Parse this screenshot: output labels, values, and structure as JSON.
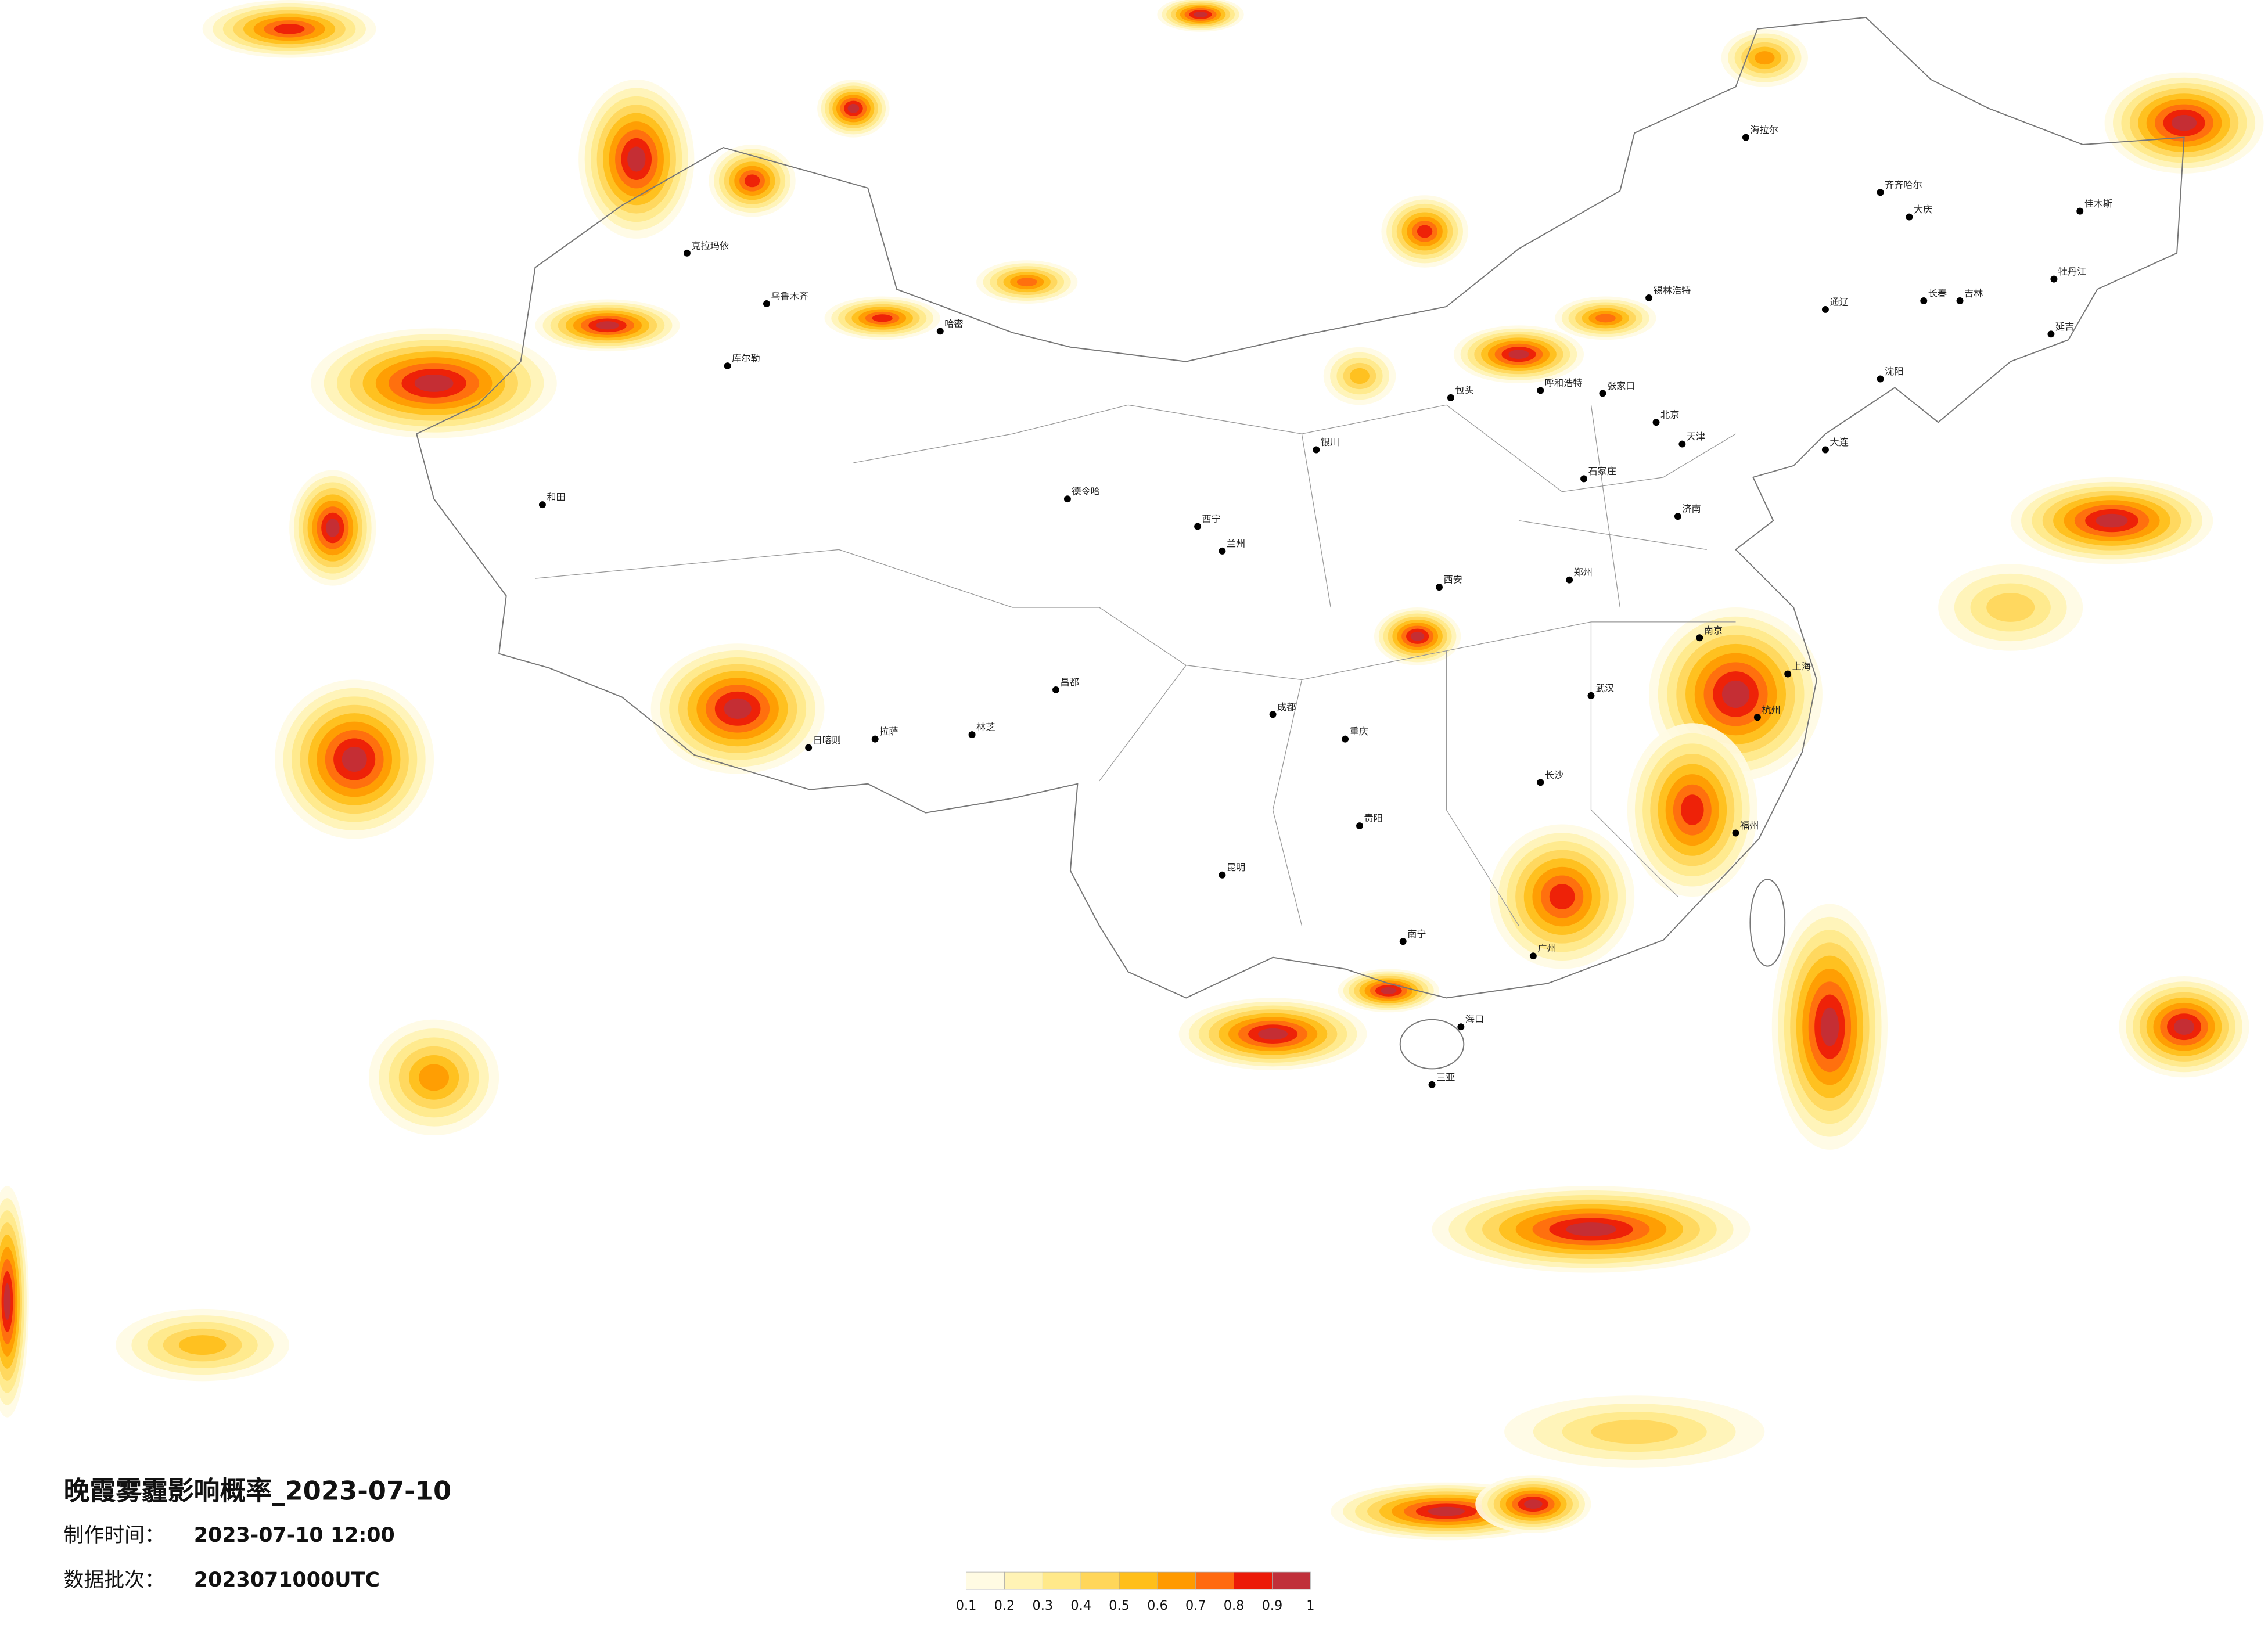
{
  "title": "晚霞雾霾影响概率_2023-07-10",
  "made_label": "制作时间：",
  "made_value": "2023-07-10 12:00",
  "batch_label": "数据批次：",
  "batch_value": "2023071000UTC",
  "legend": {
    "ticks": [
      0.1,
      0.2,
      0.3,
      0.4,
      0.5,
      0.6,
      0.7,
      0.8,
      0.9,
      1
    ],
    "colors": [
      "#fffbe3",
      "#fff3b5",
      "#ffe98a",
      "#ffd65a",
      "#ffbf1a",
      "#ff9a00",
      "#ff6a10",
      "#ec1a08",
      "#c0303a"
    ]
  },
  "cities": [
    "克拉玛依",
    "乌鲁木齐",
    "哈密",
    "库尔勒",
    "和田",
    "日喀则",
    "拉萨",
    "林芝",
    "昌都",
    "德令哈",
    "西宁",
    "兰州",
    "银川",
    "呼和浩特",
    "包头",
    "张家口",
    "北京",
    "天津",
    "石家庄",
    "济南",
    "郑州",
    "西安",
    "成都",
    "重庆",
    "贵阳",
    "昆明",
    "南宁",
    "广州",
    "长沙",
    "武汉",
    "南京",
    "上海",
    "杭州",
    "福州",
    "海口",
    "三亚",
    "海拉尔",
    "齐齐哈尔",
    "大庆",
    "长春",
    "吉林",
    "牡丹江",
    "佳木斯",
    "延吉",
    "通辽",
    "锡林浩特",
    "沈阳",
    "大连"
  ]
}
